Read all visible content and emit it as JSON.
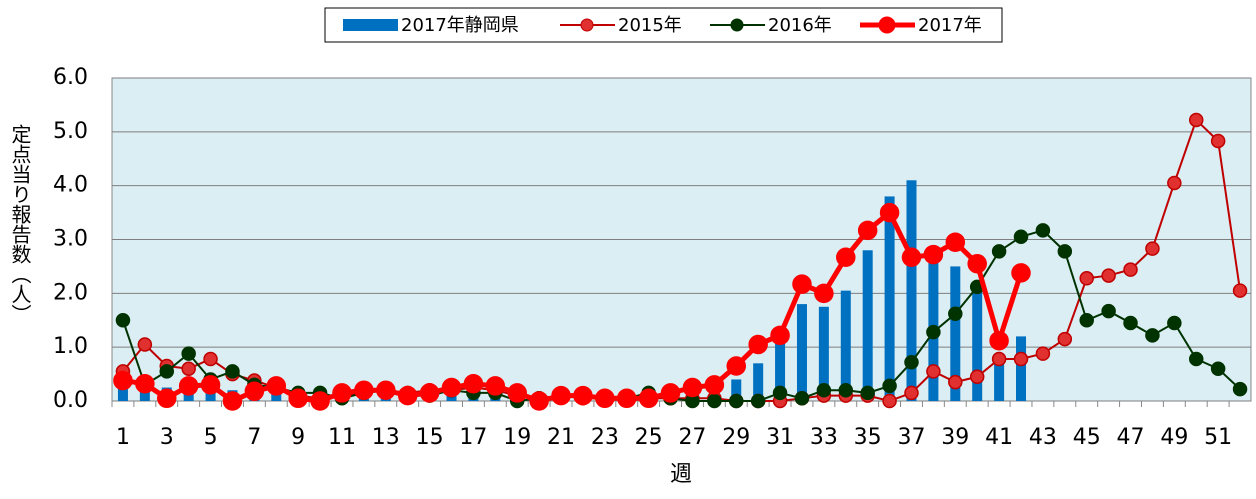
{
  "chart_data": {
    "type": "bar",
    "categories": [
      1,
      null,
      3,
      null,
      5,
      null,
      7,
      null,
      9,
      null,
      11,
      null,
      13,
      null,
      15,
      null,
      17,
      null,
      19,
      null,
      21,
      null,
      23,
      null,
      25,
      null,
      27,
      null,
      29,
      null,
      31,
      null,
      33,
      null,
      35,
      null,
      37,
      null,
      39,
      null,
      41,
      null,
      43,
      null,
      45,
      null,
      47,
      null,
      49,
      null,
      51,
      null
    ],
    "xlabel": "週",
    "ylabel": "定点当り報告数（人）",
    "ylim": [
      0,
      6
    ],
    "yticks": [
      {
        "value": 0,
        "label": "0.0"
      },
      {
        "value": 1,
        "label": "1.0"
      },
      {
        "value": 2,
        "label": "2.0"
      },
      {
        "value": 3,
        "label": "3.0"
      },
      {
        "value": 4,
        "label": "4.0"
      },
      {
        "value": 5,
        "label": "5.0"
      },
      {
        "value": 6,
        "label": "6.0"
      }
    ],
    "grid": true,
    "legend": "top",
    "series": [
      {
        "name": "2017年静岡県",
        "type": "bar",
        "color": "#0070c0",
        "values": [
          0.3,
          0.3,
          0.25,
          0.3,
          0.25,
          0.2,
          0.25,
          0.2,
          0.15,
          0.1,
          0.15,
          0.15,
          0.15,
          0.15,
          0.15,
          0.15,
          0.2,
          0.2,
          0.1,
          0.05,
          0.1,
          0.1,
          0.05,
          0.05,
          0.1,
          0.1,
          0.15,
          0.2,
          0.4,
          0.7,
          1.1,
          1.8,
          1.75,
          2.05,
          2.8,
          3.8,
          4.1,
          2.7,
          2.5,
          2.15,
          0.8,
          1.2,
          null,
          null,
          null,
          null,
          null,
          null,
          null,
          null,
          null,
          null
        ]
      },
      {
        "name": "2015年",
        "type": "line",
        "color": "#c00000",
        "marker_fill": "#e03030",
        "values": [
          0.55,
          1.05,
          0.65,
          0.6,
          0.78,
          0.5,
          0.38,
          0.25,
          0.1,
          0.05,
          0.1,
          0.15,
          0.2,
          0.15,
          0.2,
          0.2,
          0.25,
          0.2,
          0.1,
          0.05,
          0.1,
          0.05,
          0.05,
          0.05,
          0.05,
          0.05,
          0.05,
          0.05,
          0,
          0,
          0,
          0.05,
          0.1,
          0.1,
          0.1,
          0,
          0.15,
          0.55,
          0.35,
          0.45,
          0.78,
          0.78,
          0.88,
          1.15,
          2.28,
          2.33,
          2.44,
          2.83,
          4.05,
          5.22,
          4.83,
          2.05
        ]
      },
      {
        "name": "2016年",
        "type": "line",
        "color": "#003300",
        "marker_fill": "#003300",
        "values": [
          1.5,
          0.3,
          0.55,
          0.88,
          0.4,
          0.55,
          0.3,
          0.25,
          0.15,
          0.15,
          0.05,
          0.15,
          0.2,
          0.1,
          0.1,
          0.2,
          0.15,
          0.15,
          0,
          0.05,
          0.1,
          0.1,
          0.05,
          0.05,
          0.15,
          0.05,
          0,
          0,
          0,
          0,
          0.15,
          0.05,
          0.2,
          0.2,
          0.15,
          0.28,
          0.72,
          1.28,
          1.62,
          2.12,
          2.78,
          3.05,
          3.17,
          2.78,
          1.5,
          1.67,
          1.45,
          1.22,
          1.45,
          0.78,
          0.6,
          0.22
        ]
      },
      {
        "name": "2017年",
        "type": "line",
        "color": "#ff0000",
        "marker_fill": "#ff0000",
        "thick": true,
        "values": [
          0.38,
          0.32,
          0.05,
          0.28,
          0.3,
          0,
          0.18,
          0.28,
          0.05,
          0,
          0.15,
          0.2,
          0.2,
          0.1,
          0.15,
          0.25,
          0.32,
          0.28,
          0.15,
          0,
          0.1,
          0.1,
          0.05,
          0.05,
          0.05,
          0.15,
          0.25,
          0.3,
          0.65,
          1.05,
          1.22,
          2.17,
          2.0,
          2.67,
          3.17,
          3.5,
          2.67,
          2.72,
          2.95,
          2.55,
          1.12,
          2.38,
          null,
          null,
          null,
          null,
          null,
          null,
          null,
          null,
          null,
          null
        ]
      }
    ]
  }
}
